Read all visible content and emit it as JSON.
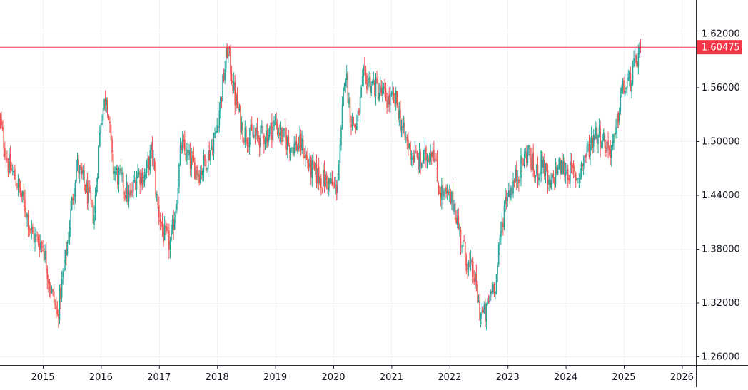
{
  "chart_data": {
    "type": "candlestick",
    "title": "",
    "xlabel": "",
    "ylabel": "",
    "ylim": [
      1.24,
      1.64
    ],
    "xlim": [
      2014.25,
      2026.4
    ],
    "grid": true,
    "legend": "none",
    "x_ticks": [
      "2015",
      "2016",
      "2017",
      "2018",
      "2019",
      "2020",
      "2021",
      "2022",
      "2023",
      "2024",
      "2025",
      "2026"
    ],
    "y_ticks": [
      "1.62000",
      "1.56000",
      "1.50000",
      "1.44000",
      "1.38000",
      "1.32000",
      "1.26000"
    ],
    "current_price": 1.60475,
    "current_price_label": "1.60475",
    "colors": {
      "up": "#26a69a",
      "down": "#ef5350",
      "price_line": "#f23645",
      "grid": "#f0f3fa",
      "text": "#131722"
    },
    "anchors": [
      [
        2014.25,
        1.525
      ],
      [
        2014.4,
        1.475
      ],
      [
        2014.55,
        1.455
      ],
      [
        2014.7,
        1.425
      ],
      [
        2014.82,
        1.395
      ],
      [
        2015.0,
        1.385
      ],
      [
        2015.12,
        1.34
      ],
      [
        2015.25,
        1.305
      ],
      [
        2015.42,
        1.385
      ],
      [
        2015.58,
        1.475
      ],
      [
        2015.75,
        1.445
      ],
      [
        2015.88,
        1.415
      ],
      [
        2016.0,
        1.525
      ],
      [
        2016.1,
        1.555
      ],
      [
        2016.2,
        1.47
      ],
      [
        2016.35,
        1.455
      ],
      [
        2016.5,
        1.435
      ],
      [
        2016.62,
        1.465
      ],
      [
        2016.75,
        1.46
      ],
      [
        2016.88,
        1.49
      ],
      [
        2016.97,
        1.43
      ],
      [
        2017.08,
        1.395
      ],
      [
        2017.2,
        1.385
      ],
      [
        2017.3,
        1.435
      ],
      [
        2017.38,
        1.495
      ],
      [
        2017.55,
        1.475
      ],
      [
        2017.7,
        1.465
      ],
      [
        2017.85,
        1.485
      ],
      [
        2017.97,
        1.505
      ],
      [
        2018.08,
        1.555
      ],
      [
        2018.18,
        1.605
      ],
      [
        2018.3,
        1.55
      ],
      [
        2018.45,
        1.51
      ],
      [
        2018.6,
        1.505
      ],
      [
        2018.75,
        1.505
      ],
      [
        2018.9,
        1.51
      ],
      [
        2019.0,
        1.52
      ],
      [
        2019.12,
        1.505
      ],
      [
        2019.28,
        1.495
      ],
      [
        2019.45,
        1.495
      ],
      [
        2019.6,
        1.47
      ],
      [
        2019.75,
        1.46
      ],
      [
        2019.9,
        1.455
      ],
      [
        2020.05,
        1.445
      ],
      [
        2020.12,
        1.49
      ],
      [
        2020.2,
        1.585
      ],
      [
        2020.3,
        1.525
      ],
      [
        2020.4,
        1.515
      ],
      [
        2020.52,
        1.57
      ],
      [
        2020.65,
        1.565
      ],
      [
        2020.8,
        1.555
      ],
      [
        2020.95,
        1.545
      ],
      [
        2021.08,
        1.545
      ],
      [
        2021.2,
        1.51
      ],
      [
        2021.35,
        1.485
      ],
      [
        2021.5,
        1.475
      ],
      [
        2021.62,
        1.485
      ],
      [
        2021.72,
        1.495
      ],
      [
        2021.8,
        1.45
      ],
      [
        2021.9,
        1.44
      ],
      [
        2022.0,
        1.435
      ],
      [
        2022.08,
        1.43
      ],
      [
        2022.18,
        1.395
      ],
      [
        2022.3,
        1.365
      ],
      [
        2022.42,
        1.35
      ],
      [
        2022.52,
        1.31
      ],
      [
        2022.62,
        1.305
      ],
      [
        2022.72,
        1.335
      ],
      [
        2022.8,
        1.345
      ],
      [
        2022.88,
        1.395
      ],
      [
        2022.97,
        1.44
      ],
      [
        2023.08,
        1.45
      ],
      [
        2023.22,
        1.47
      ],
      [
        2023.35,
        1.49
      ],
      [
        2023.48,
        1.46
      ],
      [
        2023.6,
        1.48
      ],
      [
        2023.72,
        1.445
      ],
      [
        2023.85,
        1.47
      ],
      [
        2023.97,
        1.47
      ],
      [
        2024.1,
        1.465
      ],
      [
        2024.2,
        1.46
      ],
      [
        2024.35,
        1.485
      ],
      [
        2024.5,
        1.51
      ],
      [
        2024.62,
        1.505
      ],
      [
        2024.75,
        1.49
      ],
      [
        2024.85,
        1.5
      ],
      [
        2024.95,
        1.555
      ],
      [
        2025.1,
        1.565
      ],
      [
        2025.22,
        1.59
      ],
      [
        2025.3,
        1.604
      ]
    ]
  }
}
